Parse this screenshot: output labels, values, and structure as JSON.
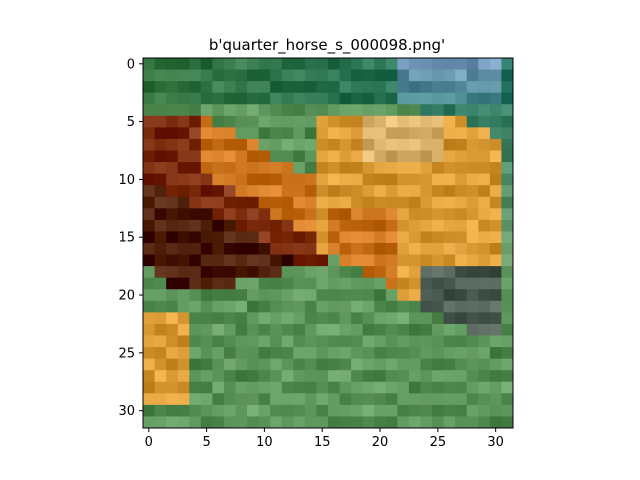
{
  "figure": {
    "title": "b'quarter_horse_s_000098.png'",
    "image_grid": {
      "rows": 32,
      "cols": 32
    },
    "x_ticks": [
      "0",
      "5",
      "10",
      "15",
      "20",
      "25",
      "30"
    ],
    "y_ticks": [
      "0",
      "5",
      "10",
      "15",
      "20",
      "25",
      "30"
    ],
    "colors": {
      "background": "#ffffff",
      "axis": "#000000",
      "sky": "#7fa6c8",
      "teal": "#2f7f6e",
      "green_dark": "#3f7f4a",
      "green_mid": "#5f9a5f",
      "green_light": "#7fb07a",
      "horse_dark": "#5a2a14",
      "horse_red": "#8a3a1a",
      "horse_orange": "#d9822b",
      "horse_gold": "#e8a844",
      "horse_light": "#e8c07a",
      "muzzle": "#5a6a60"
    }
  }
}
